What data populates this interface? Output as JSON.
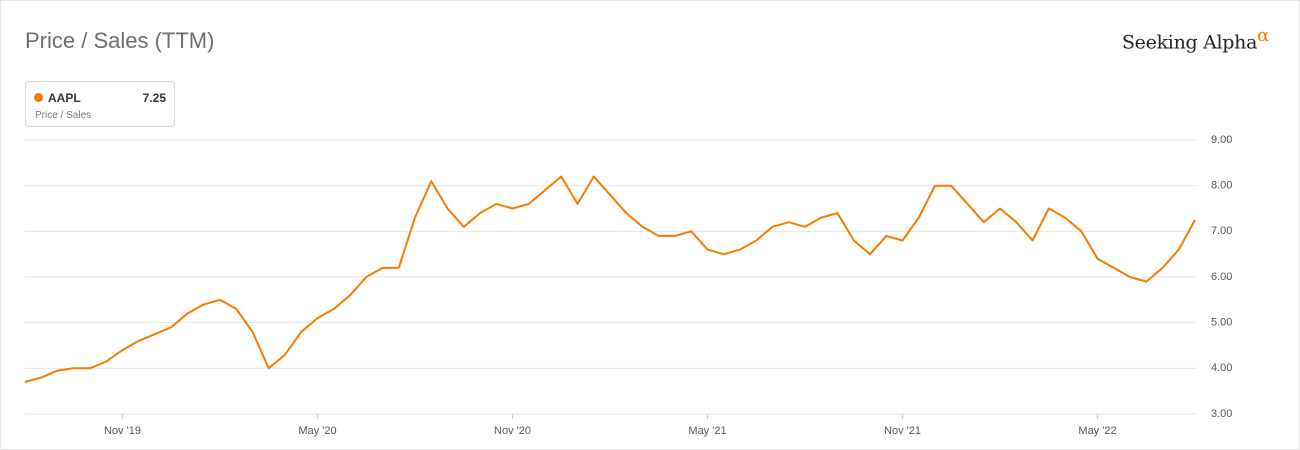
{
  "chart_data": {
    "type": "line",
    "title": "Price / Sales (TTM)",
    "brand": "Seeking Alpha",
    "brand_mark": "α",
    "legend_value": 7.25,
    "legend_caption": "Price / Sales",
    "categories": [
      null,
      null,
      null,
      null,
      null,
      null,
      "Nov '19",
      null,
      null,
      null,
      null,
      null,
      null,
      null,
      null,
      null,
      null,
      null,
      "May '20",
      null,
      null,
      null,
      null,
      null,
      null,
      null,
      null,
      null,
      null,
      null,
      "Nov '20",
      null,
      null,
      null,
      null,
      null,
      null,
      null,
      null,
      null,
      null,
      null,
      "May '21",
      null,
      null,
      null,
      null,
      null,
      null,
      null,
      null,
      null,
      null,
      null,
      "Nov '21",
      null,
      null,
      null,
      null,
      null,
      null,
      null,
      null,
      null,
      null,
      null,
      "May '22",
      null,
      null,
      null,
      null,
      null,
      null
    ],
    "series": [
      {
        "name": "AAPL",
        "color": "#f57c00",
        "values": [
          3.7,
          3.8,
          3.95,
          4.0,
          4.0,
          4.15,
          4.4,
          4.6,
          4.75,
          4.9,
          5.2,
          5.4,
          5.5,
          5.3,
          4.8,
          4.0,
          4.3,
          4.8,
          5.1,
          5.3,
          5.6,
          6.0,
          6.2,
          6.2,
          7.3,
          8.1,
          7.5,
          7.1,
          7.4,
          7.6,
          7.5,
          7.6,
          7.9,
          8.2,
          7.6,
          8.2,
          7.8,
          7.4,
          7.1,
          6.9,
          6.9,
          7.0,
          6.6,
          6.5,
          6.6,
          6.8,
          7.1,
          7.2,
          7.1,
          7.3,
          7.4,
          6.8,
          6.5,
          6.9,
          6.8,
          7.3,
          8.0,
          8.0,
          7.6,
          7.2,
          7.5,
          7.2,
          6.8,
          7.5,
          7.3,
          7.0,
          6.4,
          6.2,
          6.0,
          5.9,
          6.2,
          6.6,
          7.25
        ]
      }
    ],
    "ylim": [
      3,
      9
    ],
    "yticks": [
      {
        "value": 3,
        "label": "3.00"
      },
      {
        "value": 4,
        "label": "4.00"
      },
      {
        "value": 5,
        "label": "5.00"
      },
      {
        "value": 6,
        "label": "6.00"
      },
      {
        "value": 7,
        "label": "7.00"
      },
      {
        "value": 8,
        "label": "8.00"
      },
      {
        "value": 9,
        "label": "9.00"
      }
    ],
    "grid": true
  }
}
